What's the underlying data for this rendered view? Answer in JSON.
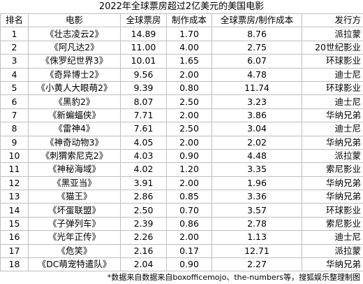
{
  "title": "2022年全球票房超过2亿美元的美国电影",
  "table": {
    "header": [
      "排名",
      "电影",
      "全球票房",
      "制作成本",
      "全球票房/制作成本",
      "发行方"
    ],
    "rows": [
      [
        "1",
        "《壮志凌云2》",
        "14.89",
        "1.70",
        "8.76",
        "派拉蒙"
      ],
      [
        "2",
        "《阿凡达2》",
        "11.00",
        "4.00",
        "2.75",
        "20世纪影业"
      ],
      [
        "3",
        "《侏罗纪世界3》",
        "10.01",
        "1.65",
        "6.07",
        "环球影业"
      ],
      [
        "4",
        "《奇异博士2》",
        "9.56",
        "2.00",
        "4.78",
        "迪士尼"
      ],
      [
        "5",
        "《小黄人大眼萌2》",
        "9.39",
        "0.80",
        "11.74",
        "环球影业"
      ],
      [
        "6",
        "《黑豹2》",
        "8.07",
        "2.50",
        "3.23",
        "迪士尼"
      ],
      [
        "7",
        "《新蝙蝠侠》",
        "7.71",
        "2.00",
        "3.86",
        "华纳兄弟"
      ],
      [
        "8",
        "《雷神4》",
        "7.61",
        "2.50",
        "3.04",
        "迪士尼"
      ],
      [
        "9",
        "《神奇动物3》",
        "4.05",
        "2.00",
        "2.02",
        "华纳兄弟"
      ],
      [
        "10",
        "《刺猬索尼克2》",
        "4.03",
        "0.90",
        "4.48",
        "派拉蒙"
      ],
      [
        "11",
        "《神秘海域》",
        "4.02",
        "1.20",
        "3.35",
        "索尼影业"
      ],
      [
        "12",
        "《黑亚当》",
        "3.91",
        "2.00",
        "1.96",
        "华纳兄弟"
      ],
      [
        "13",
        "《猫王》",
        "2.86",
        "0.85",
        "3.36",
        "华纳兄弟"
      ],
      [
        "14",
        "《坏蛋联盟》",
        "2.50",
        "0.70",
        "3.57",
        "环球影业"
      ],
      [
        "15",
        "《子弹列车》",
        "2.39",
        "0.86",
        "2.78",
        "索尼影业"
      ],
      [
        "16",
        "《光年正传》",
        "2.26",
        "2.00",
        "1.13",
        "迪士尼"
      ],
      [
        "17",
        "《危笑》",
        "2.16",
        "0.17",
        "12.71",
        "派拉蒙"
      ],
      [
        "18",
        "《DC萌宠特遣队》",
        "2.04",
        "0.90",
        "2.27",
        "华纳兄弟"
      ]
    ]
  },
  "footer": "*数据来自数据来自boxofficemojo、the-numbers等，搜狐娱乐整理制图"
}
